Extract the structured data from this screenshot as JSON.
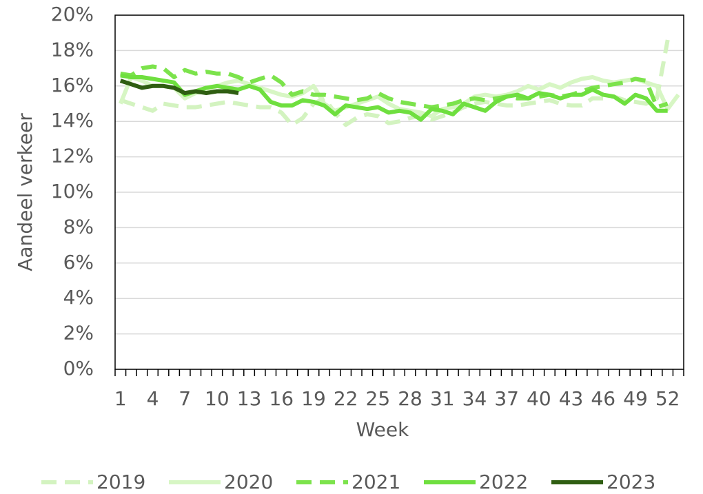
{
  "chart_data": {
    "type": "line",
    "x_label": "Week",
    "y_label": "Aandeel verkeer",
    "categories": [
      1,
      null,
      null,
      4,
      null,
      null,
      7,
      null,
      null,
      10,
      null,
      null,
      13,
      null,
      null,
      16,
      null,
      null,
      19,
      null,
      null,
      22,
      null,
      null,
      25,
      null,
      null,
      28,
      null,
      null,
      31,
      null,
      null,
      34,
      null,
      null,
      37,
      null,
      null,
      40,
      null,
      null,
      43,
      null,
      null,
      46,
      null,
      null,
      49,
      null,
      null,
      52,
      null
    ],
    "ylim": [
      0,
      20
    ],
    "yticks": [
      {
        "value": 0,
        "label": "0%"
      },
      {
        "value": 2,
        "label": "2%"
      },
      {
        "value": 4,
        "label": "4%"
      },
      {
        "value": 6,
        "label": "6%"
      },
      {
        "value": 8,
        "label": "8%"
      },
      {
        "value": 10,
        "label": "10%"
      },
      {
        "value": 12,
        "label": "12%"
      },
      {
        "value": 14,
        "label": "14%"
      },
      {
        "value": 16,
        "label": "16%"
      },
      {
        "value": 18,
        "label": "18%"
      },
      {
        "value": 20,
        "label": "20%"
      }
    ],
    "grid": true,
    "legend": "bottom",
    "series": [
      {
        "name": "2019",
        "color": "#d3f3c0",
        "dashed": true,
        "values": [
          15.2,
          15.0,
          14.8,
          14.6,
          15.0,
          14.9,
          14.8,
          14.8,
          14.9,
          15.0,
          15.1,
          15.0,
          14.9,
          14.8,
          14.8,
          14.5,
          13.8,
          14.2,
          15.0,
          15.3,
          14.5,
          13.8,
          14.2,
          14.4,
          14.3,
          13.9,
          14.0,
          14.2,
          14.3,
          14.1,
          14.3,
          14.5,
          14.8,
          15.0,
          15.1,
          15.0,
          14.9,
          14.9,
          15.0,
          15.1,
          15.2,
          15.0,
          14.9,
          14.9,
          15.3,
          15.3,
          15.4,
          15.2,
          15.1,
          15.0,
          15.3,
          18.6,
          null
        ]
      },
      {
        "name": "2020",
        "color": "#d7f6c4",
        "dashed": false,
        "values": [
          15.0,
          16.5,
          16.3,
          16.0,
          16.0,
          15.9,
          15.3,
          15.6,
          15.7,
          16.0,
          16.2,
          16.3,
          16.1,
          15.9,
          15.7,
          15.5,
          15.4,
          15.6,
          16.0,
          15.0,
          14.6,
          14.8,
          15.0,
          15.2,
          15.4,
          15.0,
          14.7,
          14.6,
          14.5,
          14.3,
          14.7,
          14.8,
          15.0,
          15.4,
          15.5,
          15.4,
          15.5,
          15.7,
          16.0,
          15.8,
          16.1,
          15.9,
          16.2,
          16.4,
          16.5,
          16.3,
          16.2,
          16.3,
          16.4,
          16.2,
          16.0,
          14.7,
          15.5
        ]
      },
      {
        "name": "2021",
        "color": "#7ce34c",
        "dashed": true,
        "values": [
          16.7,
          16.6,
          17.0,
          17.1,
          17.0,
          16.5,
          16.9,
          16.7,
          16.8,
          16.7,
          16.7,
          16.5,
          16.2,
          16.4,
          16.6,
          16.2,
          15.5,
          15.7,
          15.5,
          15.5,
          15.4,
          15.3,
          15.2,
          15.3,
          15.6,
          15.3,
          15.1,
          15.0,
          14.9,
          14.8,
          14.9,
          15.0,
          15.2,
          15.3,
          15.2,
          15.3,
          15.4,
          15.3,
          15.3,
          15.4,
          15.5,
          15.4,
          15.5,
          15.7,
          15.9,
          16.0,
          16.1,
          16.2,
          16.4,
          16.3,
          14.8,
          15.0,
          null
        ]
      },
      {
        "name": "2022",
        "color": "#6fdf3f",
        "dashed": false,
        "values": [
          16.6,
          16.5,
          16.5,
          16.4,
          16.3,
          16.2,
          15.5,
          15.7,
          15.9,
          16.0,
          15.9,
          15.8,
          16.0,
          15.8,
          15.1,
          14.9,
          14.9,
          15.2,
          15.1,
          14.9,
          14.4,
          14.9,
          14.8,
          14.7,
          14.8,
          14.5,
          14.6,
          14.5,
          14.1,
          14.7,
          14.6,
          14.4,
          15.0,
          14.8,
          14.6,
          15.1,
          15.4,
          15.5,
          15.3,
          15.6,
          15.5,
          15.3,
          15.5,
          15.5,
          15.8,
          15.5,
          15.4,
          15.0,
          15.5,
          15.3,
          14.6,
          14.6,
          null
        ]
      },
      {
        "name": "2023",
        "color": "#2f5e12",
        "dashed": false,
        "values": [
          16.3,
          16.1,
          15.9,
          16.0,
          16.0,
          15.9,
          15.6,
          15.7,
          15.6,
          15.7,
          15.7,
          15.6,
          null,
          null,
          null,
          null,
          null,
          null,
          null,
          null,
          null,
          null,
          null,
          null,
          null,
          null,
          null,
          null,
          null,
          null,
          null,
          null,
          null,
          null,
          null,
          null,
          null,
          null,
          null,
          null,
          null,
          null,
          null,
          null,
          null,
          null,
          null,
          null,
          null,
          null,
          null,
          null,
          null
        ]
      }
    ]
  }
}
